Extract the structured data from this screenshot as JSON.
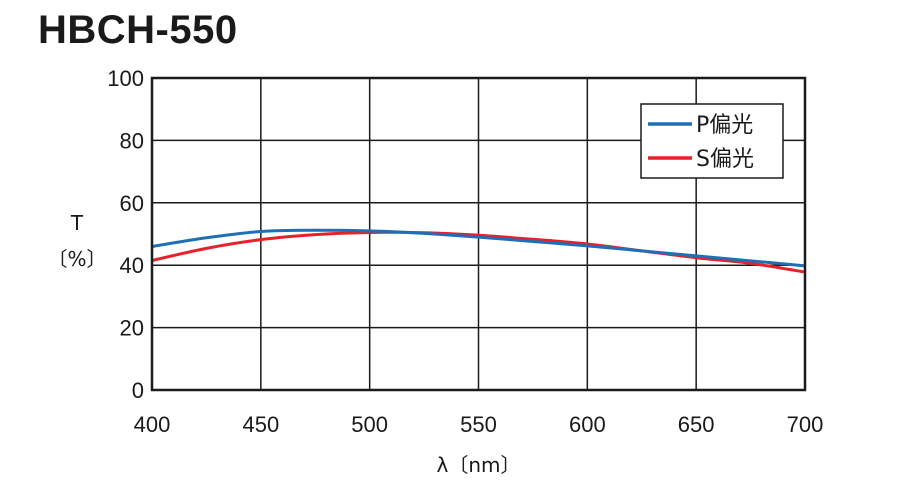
{
  "chart_data": {
    "type": "line",
    "title": "HBCH-550",
    "xlabel": "λ〔nm〕",
    "ylabel_line1": "T",
    "ylabel_line2": "〔%〕",
    "xlim": [
      400,
      700
    ],
    "ylim": [
      0,
      100
    ],
    "xticks": [
      400,
      450,
      500,
      550,
      600,
      650,
      700
    ],
    "yticks": [
      0,
      20,
      40,
      60,
      80,
      100
    ],
    "grid": true,
    "legend_position": "top-right",
    "series": [
      {
        "name": "P偏光",
        "color": "#1f6fb5",
        "x": [
          400,
          425,
          450,
          475,
          500,
          525,
          550,
          575,
          600,
          625,
          650,
          675,
          700
        ],
        "y": [
          46,
          48.8,
          50.8,
          51.2,
          51,
          50.2,
          49,
          47.6,
          46.2,
          44.6,
          43,
          41.4,
          39.8
        ]
      },
      {
        "name": "S偏光",
        "color": "#e8202a",
        "x": [
          400,
          425,
          450,
          475,
          500,
          525,
          550,
          575,
          600,
          625,
          650,
          675,
          700
        ],
        "y": [
          41.5,
          45.4,
          48.2,
          49.8,
          50.5,
          50.4,
          49.6,
          48.3,
          46.8,
          44.6,
          42.4,
          40.6,
          37.8
        ]
      }
    ]
  }
}
